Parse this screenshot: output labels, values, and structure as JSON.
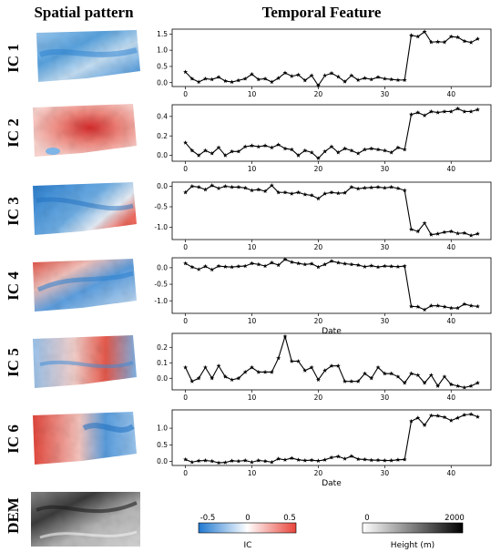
{
  "headers": {
    "spatial": "Spatial pattern",
    "temporal": "Temporal Feature"
  },
  "row_labels": [
    "IC 1",
    "IC 2",
    "IC 3",
    "IC 4",
    "IC 5",
    "IC 6",
    "DEM"
  ],
  "colorbar_ic": {
    "label": "IC",
    "ticks": [
      "-0.5",
      "0",
      "0.5"
    ],
    "min_color": "#1f78d1",
    "mid_color": "#ffffff",
    "max_color": "#e8443a"
  },
  "colorbar_dem": {
    "label": "Height (m)",
    "ticks": [
      "0",
      "2000"
    ],
    "min_color": "#ffffff",
    "max_color": "#000000"
  },
  "chart_data": [
    {
      "type": "line",
      "panel": "IC 1",
      "ylim": [
        -0.12,
        1.65
      ],
      "yticks": [
        0.0,
        0.5,
        1.0,
        1.5
      ],
      "xlim": [
        -2,
        46
      ],
      "xticks": [
        0,
        10,
        20,
        30,
        40
      ],
      "xlabel": "",
      "x": [
        0,
        1,
        2,
        3,
        4,
        5,
        6,
        7,
        8,
        9,
        10,
        11,
        12,
        13,
        14,
        15,
        16,
        17,
        18,
        19,
        20,
        21,
        22,
        23,
        24,
        25,
        26,
        27,
        28,
        29,
        30,
        31,
        32,
        33,
        34,
        35,
        36,
        37,
        38,
        39,
        40,
        41,
        42,
        43,
        44
      ],
      "values": [
        0.33,
        0.12,
        0.02,
        0.12,
        0.1,
        0.17,
        0.05,
        0.02,
        0.07,
        0.12,
        0.26,
        0.1,
        0.12,
        0.02,
        0.14,
        0.3,
        0.2,
        0.24,
        0.07,
        0.22,
        -0.09,
        0.22,
        0.29,
        0.18,
        0.03,
        0.22,
        0.08,
        0.14,
        0.1,
        0.17,
        0.12,
        0.1,
        0.08,
        0.08,
        1.46,
        1.42,
        1.57,
        1.25,
        1.26,
        1.25,
        1.42,
        1.4,
        1.28,
        1.24,
        1.35
      ]
    },
    {
      "type": "line",
      "panel": "IC 2",
      "ylim": [
        -0.06,
        0.52
      ],
      "yticks": [
        0.0,
        0.2,
        0.4
      ],
      "xlim": [
        -2,
        46
      ],
      "xticks": [
        0,
        10,
        20,
        30,
        40
      ],
      "xlabel": "",
      "x": [
        0,
        1,
        2,
        3,
        4,
        5,
        6,
        7,
        8,
        9,
        10,
        11,
        12,
        13,
        14,
        15,
        16,
        17,
        18,
        19,
        20,
        21,
        22,
        23,
        24,
        25,
        26,
        27,
        28,
        29,
        30,
        31,
        32,
        33,
        34,
        35,
        36,
        37,
        38,
        39,
        40,
        41,
        42,
        43,
        44
      ],
      "values": [
        0.13,
        0.05,
        0.0,
        0.05,
        0.02,
        0.08,
        0.0,
        0.04,
        0.04,
        0.09,
        0.1,
        0.09,
        0.1,
        0.08,
        0.11,
        0.07,
        0.06,
        0.0,
        0.05,
        0.03,
        -0.03,
        0.04,
        0.09,
        0.03,
        0.07,
        0.05,
        0.02,
        0.06,
        0.07,
        0.06,
        0.05,
        0.03,
        0.08,
        0.06,
        0.42,
        0.44,
        0.41,
        0.45,
        0.44,
        0.45,
        0.45,
        0.48,
        0.45,
        0.45,
        0.47
      ]
    },
    {
      "type": "line",
      "panel": "IC 3",
      "ylim": [
        -1.3,
        0.1
      ],
      "yticks": [
        0.0,
        -0.5,
        -1.0
      ],
      "xlim": [
        -2,
        46
      ],
      "xticks": [
        0,
        10,
        20,
        30,
        40
      ],
      "xlabel": "",
      "x": [
        0,
        1,
        2,
        3,
        4,
        5,
        6,
        7,
        8,
        9,
        10,
        11,
        12,
        13,
        14,
        15,
        16,
        17,
        18,
        19,
        20,
        21,
        22,
        23,
        24,
        25,
        26,
        27,
        28,
        29,
        30,
        31,
        32,
        33,
        34,
        35,
        36,
        37,
        38,
        39,
        40,
        41,
        42,
        43,
        44
      ],
      "values": [
        -0.15,
        0.0,
        -0.02,
        -0.08,
        0.02,
        -0.05,
        0.0,
        -0.02,
        -0.02,
        -0.04,
        -0.1,
        -0.08,
        -0.12,
        0.02,
        -0.15,
        -0.15,
        -0.18,
        -0.15,
        -0.2,
        -0.22,
        -0.3,
        -0.18,
        -0.15,
        -0.17,
        -0.16,
        -0.02,
        -0.06,
        -0.04,
        -0.03,
        -0.02,
        -0.04,
        -0.02,
        -0.05,
        -0.1,
        -1.05,
        -1.1,
        -0.9,
        -1.18,
        -1.16,
        -1.12,
        -1.1,
        -1.15,
        -1.14,
        -1.2,
        -1.16
      ]
    },
    {
      "type": "line",
      "panel": "IC 4",
      "ylim": [
        -1.38,
        0.3
      ],
      "yticks": [
        0.0,
        -0.5,
        -1.0
      ],
      "xlim": [
        -2,
        46
      ],
      "xticks": [
        0,
        10,
        20,
        30,
        40
      ],
      "xlabel": "Date",
      "x": [
        0,
        1,
        2,
        3,
        4,
        5,
        6,
        7,
        8,
        9,
        10,
        11,
        12,
        13,
        14,
        15,
        16,
        17,
        18,
        19,
        20,
        21,
        22,
        23,
        24,
        25,
        26,
        27,
        28,
        29,
        30,
        31,
        32,
        33,
        34,
        35,
        36,
        37,
        38,
        39,
        40,
        41,
        42,
        43,
        44
      ],
      "values": [
        0.13,
        0.02,
        -0.05,
        0.04,
        -0.06,
        0.05,
        0.03,
        0.02,
        0.04,
        0.05,
        0.13,
        0.1,
        0.05,
        0.15,
        0.08,
        0.25,
        0.17,
        0.13,
        0.1,
        0.12,
        0.02,
        0.1,
        0.2,
        0.15,
        0.12,
        0.1,
        0.08,
        0.03,
        0.06,
        0.02,
        0.05,
        0.04,
        0.03,
        0.05,
        -1.17,
        -1.18,
        -1.27,
        -1.15,
        -1.15,
        -1.18,
        -1.22,
        -1.22,
        -1.1,
        -1.15,
        -1.17
      ]
    },
    {
      "type": "line",
      "panel": "IC 5",
      "ylim": [
        -0.075,
        0.29
      ],
      "yticks": [
        0.0,
        0.1,
        0.2
      ],
      "xlim": [
        -2,
        46
      ],
      "xticks": [
        0,
        10,
        20,
        30,
        40
      ],
      "xlabel": "",
      "x": [
        0,
        1,
        2,
        3,
        4,
        5,
        6,
        7,
        8,
        9,
        10,
        11,
        12,
        13,
        14,
        15,
        16,
        17,
        18,
        19,
        20,
        21,
        22,
        23,
        24,
        25,
        26,
        27,
        28,
        29,
        30,
        31,
        32,
        33,
        34,
        35,
        36,
        37,
        38,
        39,
        40,
        41,
        42,
        43,
        44
      ],
      "values": [
        0.07,
        -0.02,
        0.0,
        0.07,
        0.0,
        0.08,
        0.01,
        -0.01,
        0.0,
        0.04,
        0.07,
        0.04,
        0.04,
        0.04,
        0.13,
        0.27,
        0.11,
        0.11,
        0.05,
        0.07,
        -0.01,
        0.05,
        0.08,
        0.08,
        -0.02,
        -0.02,
        -0.02,
        0.03,
        0.0,
        0.07,
        0.03,
        0.03,
        0.01,
        -0.03,
        0.03,
        0.02,
        -0.03,
        0.02,
        -0.05,
        0.01,
        -0.04,
        -0.05,
        -0.06,
        -0.05,
        -0.03
      ]
    },
    {
      "type": "line",
      "panel": "IC 6",
      "ylim": [
        -0.12,
        1.55
      ],
      "yticks": [
        0.0,
        0.5,
        1.0
      ],
      "xlim": [
        -2,
        46
      ],
      "xticks": [
        0,
        10,
        20,
        30,
        40
      ],
      "xlabel": "Date",
      "x": [
        0,
        1,
        2,
        3,
        4,
        5,
        6,
        7,
        8,
        9,
        10,
        11,
        12,
        13,
        14,
        15,
        16,
        17,
        18,
        19,
        20,
        21,
        22,
        23,
        24,
        25,
        26,
        27,
        28,
        29,
        30,
        31,
        32,
        33,
        34,
        35,
        36,
        37,
        38,
        39,
        40,
        41,
        42,
        43,
        44
      ],
      "values": [
        0.06,
        -0.02,
        0.02,
        0.03,
        0.01,
        -0.04,
        -0.03,
        0.02,
        0.01,
        0.03,
        -0.02,
        0.03,
        0.01,
        -0.02,
        0.08,
        0.05,
        0.1,
        0.05,
        0.03,
        0.04,
        0.02,
        0.05,
        0.12,
        0.15,
        0.08,
        0.16,
        0.07,
        0.06,
        0.04,
        0.04,
        0.03,
        0.03,
        0.05,
        0.06,
        1.21,
        1.31,
        1.09,
        1.38,
        1.37,
        1.33,
        1.23,
        1.31,
        1.4,
        1.42,
        1.34
      ]
    }
  ]
}
